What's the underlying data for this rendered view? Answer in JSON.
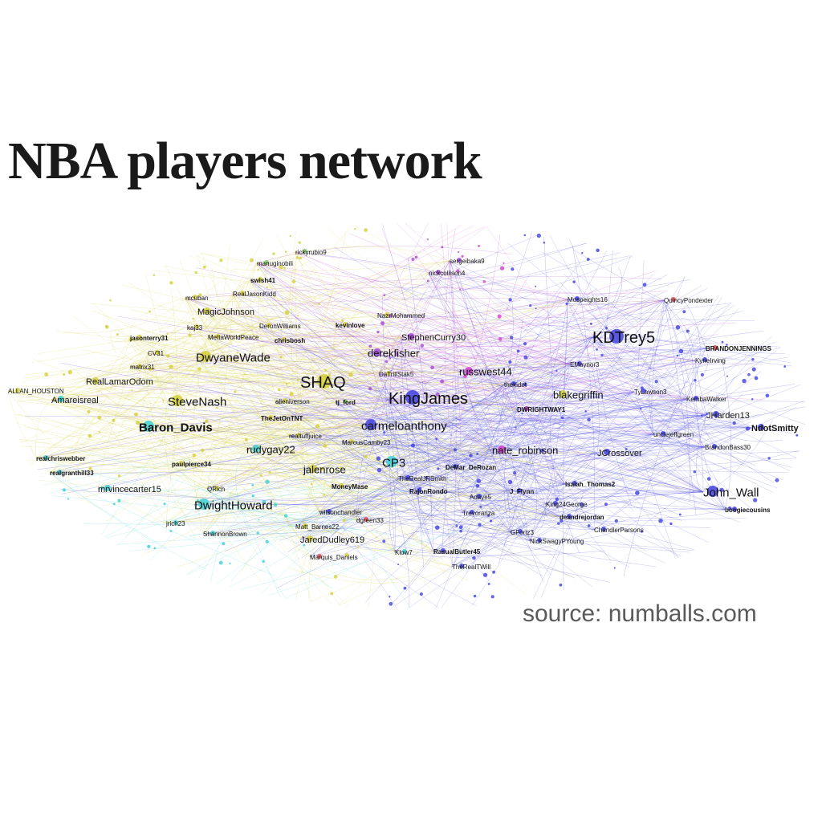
{
  "title": "NBA players network",
  "source": "source: numballs.com",
  "colors": {
    "yellow": "#d4cf3a",
    "green": "#7ecb6b",
    "cyan": "#3fd0d4",
    "blue": "#3f3fe0",
    "purple": "#a44ad8",
    "magenta": "#d43fd0",
    "red": "#e05050"
  },
  "nodes": [
    {
      "label": "KDTrey5",
      "color": "blue",
      "size": "xl"
    },
    {
      "label": "SHAQ",
      "color": "yellow",
      "size": "xl"
    },
    {
      "label": "KingJames",
      "color": "blue",
      "size": "xl"
    },
    {
      "label": "DwyaneWade",
      "color": "yellow",
      "size": "lg"
    },
    {
      "label": "SteveNash",
      "color": "yellow",
      "size": "lg"
    },
    {
      "label": "Baron_Davis",
      "color": "cyan",
      "size": "lg"
    },
    {
      "label": "DwightHoward",
      "color": "cyan",
      "size": "lg"
    },
    {
      "label": "carmeloanthony",
      "color": "blue",
      "size": "lg"
    },
    {
      "label": "CP3",
      "color": "cyan",
      "size": "lg"
    },
    {
      "label": "John_Wall",
      "color": "blue",
      "size": "lg"
    },
    {
      "label": "derekfisher",
      "color": "purple",
      "size": "md"
    },
    {
      "label": "russwest44",
      "color": "magenta",
      "size": "md"
    },
    {
      "label": "blakegriffin",
      "color": "yellow",
      "size": "md"
    },
    {
      "label": "nate_robinson",
      "color": "magenta",
      "size": "md"
    },
    {
      "label": "rudygay22",
      "color": "cyan",
      "size": "md"
    },
    {
      "label": "jalenrose",
      "color": "yellow",
      "size": "md"
    },
    {
      "label": "MagicJohnson",
      "color": "yellow",
      "size": "sm"
    },
    {
      "label": "StephenCurry30",
      "color": "purple",
      "size": "sm"
    },
    {
      "label": "Amareisreal",
      "color": "cyan",
      "size": "sm"
    },
    {
      "label": "RealLamarOdom",
      "color": "yellow",
      "size": "sm"
    },
    {
      "label": "mrvincecarter15",
      "color": "cyan",
      "size": "sm"
    },
    {
      "label": "JaredDudley619",
      "color": "yellow",
      "size": "sm"
    },
    {
      "label": "JCrossover",
      "color": "blue",
      "size": "sm"
    },
    {
      "label": "JHarden13",
      "color": "blue",
      "size": "sm"
    },
    {
      "label": "NdotSmitty",
      "color": "blue",
      "size": "sm"
    },
    {
      "label": "KyrieIrving",
      "color": "blue",
      "size": "xs"
    },
    {
      "label": "BRANDONJENNINGS",
      "color": "red",
      "size": "xs"
    },
    {
      "label": "boogiecousins",
      "color": "blue",
      "size": "xs"
    },
    {
      "label": "Isaiah_Thomas2",
      "color": "blue",
      "size": "xs"
    },
    {
      "label": "DWRIGHTWAY1",
      "color": "magenta",
      "size": "xs"
    },
    {
      "label": "DeMar_DeRozan",
      "color": "blue",
      "size": "xs"
    },
    {
      "label": "RajonRondo",
      "color": "blue",
      "size": "xs"
    },
    {
      "label": "J_Flynn",
      "color": "blue",
      "size": "xs"
    },
    {
      "label": "deandrejordan",
      "color": "blue",
      "size": "xs"
    },
    {
      "label": "RasualButler45",
      "color": "blue",
      "size": "xs"
    },
    {
      "label": "Klow7",
      "color": "cyan",
      "size": "xs"
    },
    {
      "label": "Marquis_Daniels",
      "color": "red",
      "size": "xs"
    },
    {
      "label": "MoneyMase",
      "color": "yellow",
      "size": "xs"
    },
    {
      "label": "paulpierce34",
      "color": "yellow",
      "size": "xs"
    },
    {
      "label": "QRich",
      "color": "yellow",
      "size": "xs"
    },
    {
      "label": "jrich23",
      "color": "cyan",
      "size": "xs"
    },
    {
      "label": "Matt_Barnes22",
      "color": "yellow",
      "size": "xs"
    },
    {
      "label": "TheJetOnTNT",
      "color": "yellow",
      "size": "xs"
    },
    {
      "label": "tj_ford",
      "color": "green",
      "size": "xs"
    },
    {
      "label": "chrisbosh",
      "color": "yellow",
      "size": "xs"
    },
    {
      "label": "kevinlove",
      "color": "yellow",
      "size": "xs"
    },
    {
      "label": "jasonterry31",
      "color": "yellow",
      "size": "xs"
    },
    {
      "label": "matrix31",
      "color": "yellow",
      "size": "xs"
    },
    {
      "label": "mcuban",
      "color": "yellow",
      "size": "xs"
    },
    {
      "label": "swish41",
      "color": "yellow",
      "size": "xs"
    },
    {
      "label": "manuginobili",
      "color": "green",
      "size": "xs"
    },
    {
      "label": "NazrMohammed",
      "color": "yellow",
      "size": "xs"
    },
    {
      "label": "thekidet",
      "color": "blue",
      "size": "xs"
    },
    {
      "label": "TyLawson3",
      "color": "blue",
      "size": "xs"
    },
    {
      "label": "KembaWalker",
      "color": "blue",
      "size": "xs"
    },
    {
      "label": "realchriswebber",
      "color": "cyan",
      "size": "xs"
    },
    {
      "label": "realgranthill33",
      "color": "cyan",
      "size": "xs"
    },
    {
      "label": "ALLAN_HOUSTON",
      "color": "yellow",
      "size": "xs"
    },
    {
      "label": "EMaynor3",
      "color": "blue",
      "size": "xs"
    },
    {
      "label": "ShannonBrown",
      "color": "cyan",
      "size": "xs"
    },
    {
      "label": "wilsonchandler",
      "color": "blue",
      "size": "xs"
    },
    {
      "label": "CV31",
      "color": "yellow",
      "size": "xs"
    },
    {
      "label": "kaj33",
      "color": "yellow",
      "size": "xs"
    },
    {
      "label": "nickcollison4",
      "color": "purple",
      "size": "xs"
    },
    {
      "label": "sergeibaka9",
      "color": "purple",
      "size": "xs"
    },
    {
      "label": "rickyrubio9",
      "color": "green",
      "size": "xs"
    },
    {
      "label": "RealJasonKidd",
      "color": "yellow",
      "size": "xs"
    },
    {
      "label": "DeronWilliams",
      "color": "yellow",
      "size": "xs"
    },
    {
      "label": "MettaWorldPeace",
      "color": "yellow",
      "size": "xs"
    },
    {
      "label": "TheRealJRSmith",
      "color": "blue",
      "size": "xs"
    },
    {
      "label": "Trevorariza",
      "color": "blue",
      "size": "xs"
    },
    {
      "label": "Adaye5",
      "color": "blue",
      "size": "xs"
    },
    {
      "label": "King24George",
      "color": "blue",
      "size": "xs"
    },
    {
      "label": "NickSwagyPYoung",
      "color": "blue",
      "size": "xs"
    },
    {
      "label": "GFortz3",
      "color": "blue",
      "size": "xs"
    },
    {
      "label": "TheRealTWill",
      "color": "blue",
      "size": "xs"
    },
    {
      "label": "dgreen33",
      "color": "red",
      "size": "xs"
    },
    {
      "label": "alleniverson",
      "color": "yellow",
      "size": "xs"
    },
    {
      "label": "realtuffjuice",
      "color": "yellow",
      "size": "xs"
    },
    {
      "label": "MarcusCamby23",
      "color": "yellow",
      "size": "xs"
    },
    {
      "label": "QuincyPondexter",
      "color": "red",
      "size": "xs"
    },
    {
      "label": "BrandonBass30",
      "color": "blue",
      "size": "xs"
    },
    {
      "label": "unclejeffgreen",
      "color": "blue",
      "size": "xs"
    },
    {
      "label": "ChandlerParsons",
      "color": "blue",
      "size": "xs"
    },
    {
      "label": "Mospeights16",
      "color": "blue",
      "size": "xs"
    },
    {
      "label": "DaTrillStak5",
      "color": "yellow",
      "size": "xs"
    }
  ]
}
